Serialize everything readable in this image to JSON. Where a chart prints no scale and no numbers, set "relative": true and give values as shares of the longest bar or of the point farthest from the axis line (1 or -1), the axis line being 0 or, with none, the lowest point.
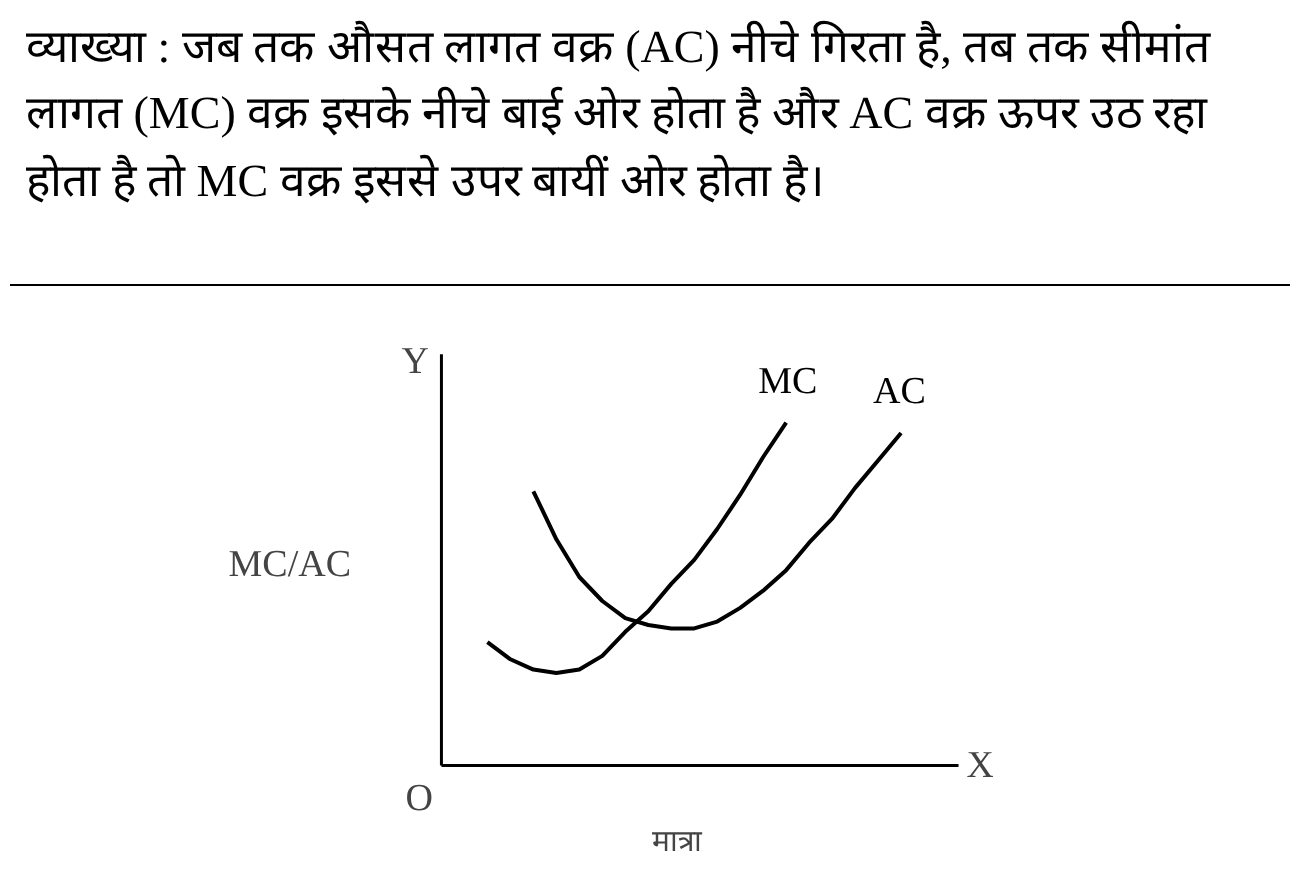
{
  "chart_data": {
    "type": "line",
    "relative": true,
    "title": "व्याख्या : जब तक औसत लागत वक्र (AC) नीचे गिरता है, तब तक सीमांत लागत (MC) वक्र इसके नीचे बाई ओर होता है और AC वक्र ऊपर उठ रहा होता है तो MC वक्र इससे उपर बायीं ओर होता है।",
    "ylabel": "MC/AC",
    "xlabel": "मात्रा",
    "annotations": [
      "Y",
      "X",
      "O"
    ],
    "categories": [
      null,
      null,
      null,
      null,
      null,
      null,
      null,
      null,
      null,
      null,
      null,
      null,
      null,
      null,
      null,
      null,
      null,
      null,
      null
    ],
    "series": [
      {
        "name": "MC",
        "color": "#000000",
        "values": [
          0.36,
          0.31,
          0.28,
          0.27,
          0.28,
          0.32,
          0.39,
          0.45,
          0.53,
          0.6,
          0.69,
          0.79,
          0.9,
          1.0,
          null,
          null,
          null,
          null,
          null
        ]
      },
      {
        "name": "AC",
        "color": "#000000",
        "values": [
          null,
          null,
          0.8,
          0.66,
          0.55,
          0.48,
          0.43,
          0.41,
          0.4,
          0.4,
          0.42,
          0.46,
          0.51,
          0.57,
          0.65,
          0.72,
          0.81,
          0.89,
          0.97
        ]
      }
    ],
    "grid": false,
    "legend": false
  }
}
